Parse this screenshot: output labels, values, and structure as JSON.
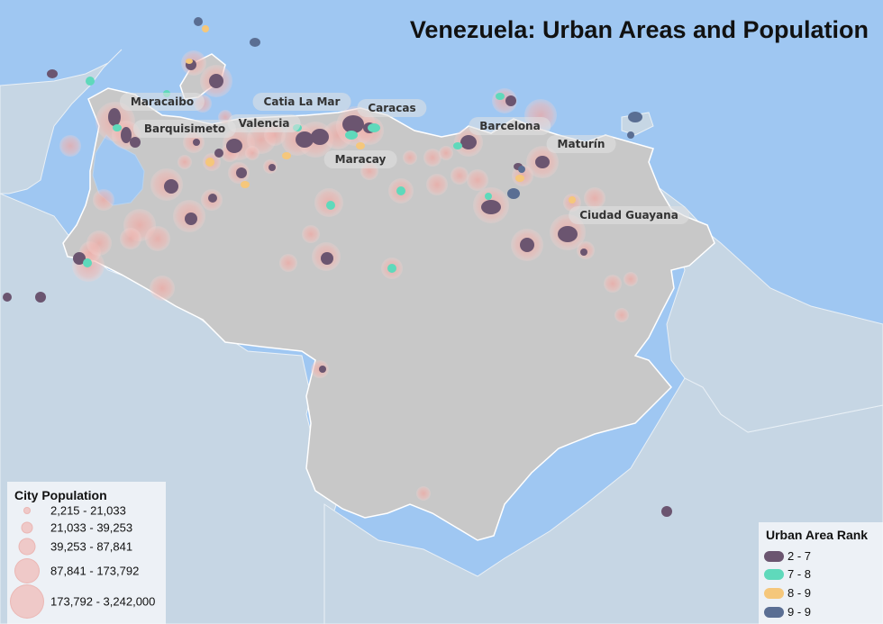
{
  "title": "Venezuela: Urban Areas and Population",
  "colors": {
    "ocean": "#9fc7f2",
    "land_neighbors": "#c6d6e4",
    "venezuela": "#c8c8c8",
    "border": "#ffffff",
    "pop_circle": "#f0b4af",
    "rank_2_7": "#6b5570",
    "rank_7_8": "#5fd9bb",
    "rank_8_9": "#f5c77b",
    "rank_9_9": "#5a6e93"
  },
  "city_labels": [
    "Maracaibo",
    "Barquisimeto",
    "Valencia",
    "Catia La Mar",
    "Caracas",
    "Maracay",
    "Barcelona",
    "Maturín",
    "Ciudad Guayana"
  ],
  "legend_population": {
    "title": "City Population",
    "classes": [
      "2,215 - 21,033",
      "21,033 - 39,253",
      "39,253 - 87,841",
      "87,841 - 173,792",
      "173,792 - 3,242,000"
    ]
  },
  "legend_rank": {
    "title": "Urban Area Rank",
    "classes": [
      {
        "label": "2 - 7",
        "color": "#6b5570"
      },
      {
        "label": "7 - 8",
        "color": "#5fd9bb"
      },
      {
        "label": "8 - 9",
        "color": "#f5c77b"
      },
      {
        "label": "9 - 9",
        "color": "#5a6e93"
      }
    ]
  }
}
